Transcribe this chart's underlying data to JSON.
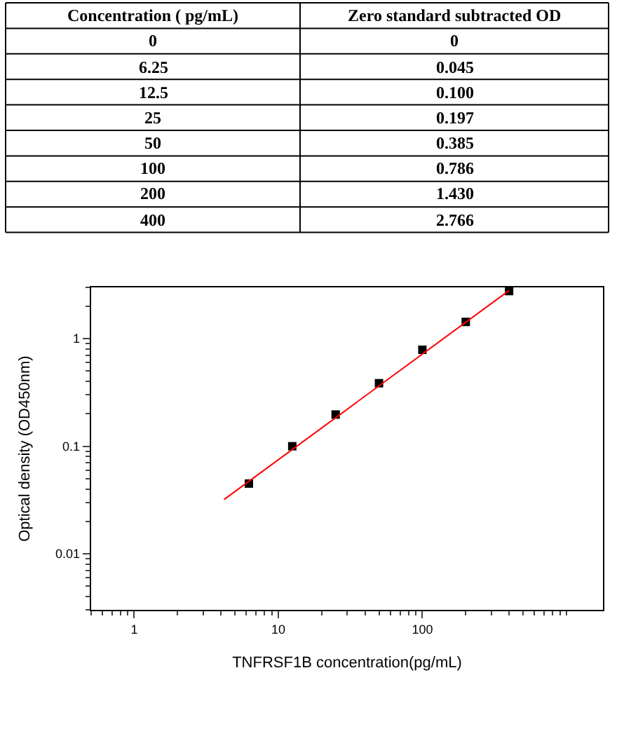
{
  "chart_data": [
    {
      "type": "other",
      "xlabel": "Concentration ( pg/mL)",
      "ylabel": "Zero standard subtracted OD",
      "categories": [
        "0",
        "6.25",
        "12.5",
        "25",
        "50",
        "100",
        "200",
        "400"
      ],
      "value_labels": [
        "0",
        "0.045",
        "0.100",
        "0.197",
        "0.385",
        "0.786",
        "1.430",
        "2.766"
      ]
    },
    {
      "type": "scatter",
      "xlabel": "TNFRSF1B concentration(pg/mL)",
      "ylabel": "Optical density (OD450nm)",
      "log": "xy",
      "xlim": [
        0.5,
        1800
      ],
      "ylim": [
        0.003,
        3
      ],
      "xticks": [
        1,
        10,
        100
      ],
      "yticks": [
        0.01,
        0.1,
        1
      ],
      "series": [
        {
          "type": "scatter",
          "marker": "square",
          "color": "#000000",
          "x": [
            6.25,
            12.5,
            25,
            50,
            100,
            200,
            400
          ],
          "values": [
            0.045,
            0.1,
            0.197,
            0.385,
            0.786,
            1.43,
            2.766
          ]
        },
        {
          "type": "line",
          "marker": "none",
          "color": "#ff0000",
          "x": [
            4.2,
            400
          ],
          "values": [
            0.032,
            2.8
          ]
        }
      ]
    }
  ]
}
